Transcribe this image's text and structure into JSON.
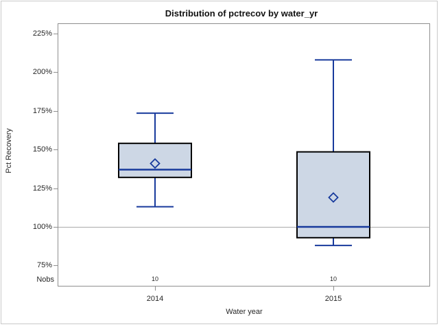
{
  "window": {
    "background": "#ffffff",
    "border_color": "#c9c9c9"
  },
  "chart": {
    "title": "Distribution of pctrecov by water_yr",
    "y_axis": {
      "label": "Pct Recovery",
      "tick_labels": [
        "225%",
        "200%",
        "175%",
        "150%",
        "125%",
        "100%",
        "75%"
      ],
      "tick_values": [
        225,
        200,
        175,
        150,
        125,
        100,
        75
      ]
    },
    "x_axis": {
      "label": "Water year"
    },
    "nobs_row_label": "Nobs"
  },
  "chart_data": {
    "type": "boxplot",
    "title": "Distribution of pctrecov by water_yr",
    "xlabel": "Water year",
    "ylabel": "Pct Recovery",
    "ylim": [
      61,
      232
    ],
    "y_ticks": [
      75,
      100,
      125,
      150,
      175,
      200,
      225
    ],
    "y_tick_format": "percent",
    "reference_line": 100,
    "grid": false,
    "legend": "none",
    "categories": [
      "2014",
      "2015"
    ],
    "nobs": [
      "10",
      "10"
    ],
    "series": [
      {
        "category": "2014",
        "n": 10,
        "whisker_low": 113,
        "q1": 132,
        "median": 137,
        "mean": 141,
        "q3": 154,
        "whisker_high": 173.5
      },
      {
        "category": "2015",
        "n": 10,
        "whisker_low": 88,
        "q1": 93,
        "median": 100,
        "mean": 119,
        "q3": 148.5,
        "whisker_high": 208
      }
    ]
  },
  "colors": {
    "box_fill": "#cdd7e5",
    "box_stroke": "#000000",
    "line": "#17399c",
    "reference_line": "#a9a9a9",
    "frame": "#8e8e8e",
    "text": "#262626"
  }
}
